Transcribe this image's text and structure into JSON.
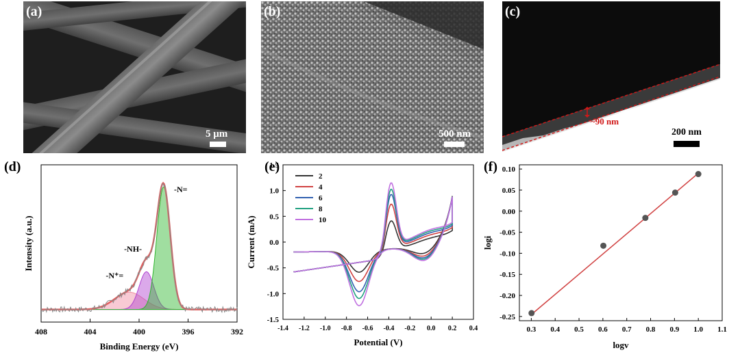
{
  "panels": {
    "a": {
      "label": "(a)",
      "scalebar": "5 μm"
    },
    "b": {
      "label": "(b)",
      "scalebar": "500 nm"
    },
    "c": {
      "label": "(c)",
      "scalebar": "200 nm",
      "annotation": "~90 nm"
    },
    "d": {
      "label": "(d)"
    },
    "e": {
      "label": "(e)"
    },
    "f": {
      "label": "(f)"
    }
  },
  "chart_data": [
    {
      "id": "d",
      "type": "line",
      "xlabel": "Binding Energy (eV)",
      "ylabel": "Intensity (a.u.)",
      "x_ticks": [
        408,
        404,
        400,
        396,
        392
      ],
      "xlim": [
        408,
        392
      ],
      "peaks": [
        {
          "name": "-N=",
          "center": 398.0,
          "color": "#2db52d"
        },
        {
          "name": "-NH-",
          "center": 399.4,
          "color": "#b040d0"
        },
        {
          "name": "-N⁺=",
          "center": 400.8,
          "color": "#f08aa0"
        }
      ],
      "colors": {
        "raw": "#888888",
        "envelope": "#e06060"
      }
    },
    {
      "id": "e",
      "type": "line",
      "xlabel": "Potential (V)",
      "ylabel": "Current (mA)",
      "x_ticks": [
        -1.4,
        -1.2,
        -1.0,
        -0.8,
        -0.6,
        -0.4,
        -0.2,
        0.0,
        0.2,
        0.4
      ],
      "x_tick_labels": [
        "-1.4",
        "-1.2",
        "-1.0",
        "-0.8",
        "-0.6",
        "-0.4",
        "-0.2",
        "0.0",
        "0.2",
        "0.4"
      ],
      "y_ticks": [
        -1.5,
        -1.0,
        -0.5,
        0.0,
        0.5,
        1.0,
        1.5
      ],
      "y_tick_labels": [
        "-1.5",
        "-1.0",
        "-0.5",
        "0.0",
        "0.5",
        "1.0",
        "1.5"
      ],
      "xlim": [
        -1.4,
        0.4
      ],
      "ylim": [
        -1.5,
        1.5
      ],
      "legend_position": "top-left",
      "series": [
        {
          "name": "2",
          "color": "#333333",
          "scale": 0.6,
          "anodic_peak": 0.7,
          "cathodic_peak": -0.57
        },
        {
          "name": "4",
          "color": "#d04040",
          "scale": 0.75,
          "anodic_peak": 1.05,
          "cathodic_peak": -0.75
        },
        {
          "name": "6",
          "color": "#3060b0",
          "scale": 0.85,
          "anodic_peak": 1.25,
          "cathodic_peak": -0.95
        },
        {
          "name": "8",
          "color": "#20a080",
          "scale": 0.93,
          "anodic_peak": 1.35,
          "cathodic_peak": -1.08
        },
        {
          "name": "10",
          "color": "#c070e0",
          "scale": 1.0,
          "anodic_peak": 1.48,
          "cathodic_peak": -1.22
        }
      ]
    },
    {
      "id": "f",
      "type": "scatter",
      "xlabel": "logv",
      "ylabel": "logi",
      "x_ticks": [
        0.3,
        0.4,
        0.5,
        0.6,
        0.7,
        0.8,
        0.9,
        1.0,
        1.1
      ],
      "x_tick_labels": [
        "0.3",
        "0.4",
        "0.5",
        "0.6",
        "0.7",
        "0.8",
        "0.9",
        "1.0",
        "1.1"
      ],
      "y_ticks": [
        -0.25,
        -0.2,
        -0.15,
        -0.1,
        -0.05,
        0.0,
        0.05,
        0.1
      ],
      "y_tick_labels": [
        "-0.25",
        "-0.20",
        "-0.15",
        "-0.10",
        "-0.05",
        "0.00",
        "0.05",
        "0.10"
      ],
      "xlim": [
        0.3,
        1.1
      ],
      "ylim": [
        -0.25,
        0.1
      ],
      "points": [
        {
          "x": 0.301,
          "y": -0.242
        },
        {
          "x": 0.602,
          "y": -0.082
        },
        {
          "x": 0.778,
          "y": -0.016
        },
        {
          "x": 0.903,
          "y": 0.044
        },
        {
          "x": 1.0,
          "y": 0.088
        }
      ],
      "fit": {
        "x0": 0.301,
        "y0": -0.245,
        "x1": 1.0,
        "y1": 0.09
      },
      "colors": {
        "points": "#555555",
        "fit": "#d04040"
      }
    }
  ]
}
